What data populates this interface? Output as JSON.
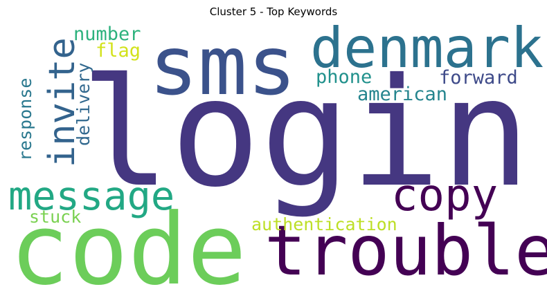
{
  "title": "Cluster 5 - Top Keywords",
  "words": [
    {
      "text": "login",
      "color": "#453781"
    },
    {
      "text": "sms",
      "color": "#3b528b"
    },
    {
      "text": "denmark",
      "color": "#2c728e"
    },
    {
      "text": "code",
      "color": "#6ccd5a"
    },
    {
      "text": "trouble",
      "color": "#440154"
    },
    {
      "text": "copy",
      "color": "#440154"
    },
    {
      "text": "message",
      "color": "#22a884"
    },
    {
      "text": "invite",
      "color": "#33638d"
    },
    {
      "text": "number",
      "color": "#2db27d"
    },
    {
      "text": "flag",
      "color": "#d2e21b"
    },
    {
      "text": "phone",
      "color": "#21918c"
    },
    {
      "text": "forward",
      "color": "#3e4a89"
    },
    {
      "text": "american",
      "color": "#25858e"
    },
    {
      "text": "authentication",
      "color": "#bddf26"
    },
    {
      "text": "stuck",
      "color": "#7ad151"
    },
    {
      "text": "response",
      "color": "#2a788e"
    },
    {
      "text": "delivery",
      "color": "#31688e"
    }
  ]
}
